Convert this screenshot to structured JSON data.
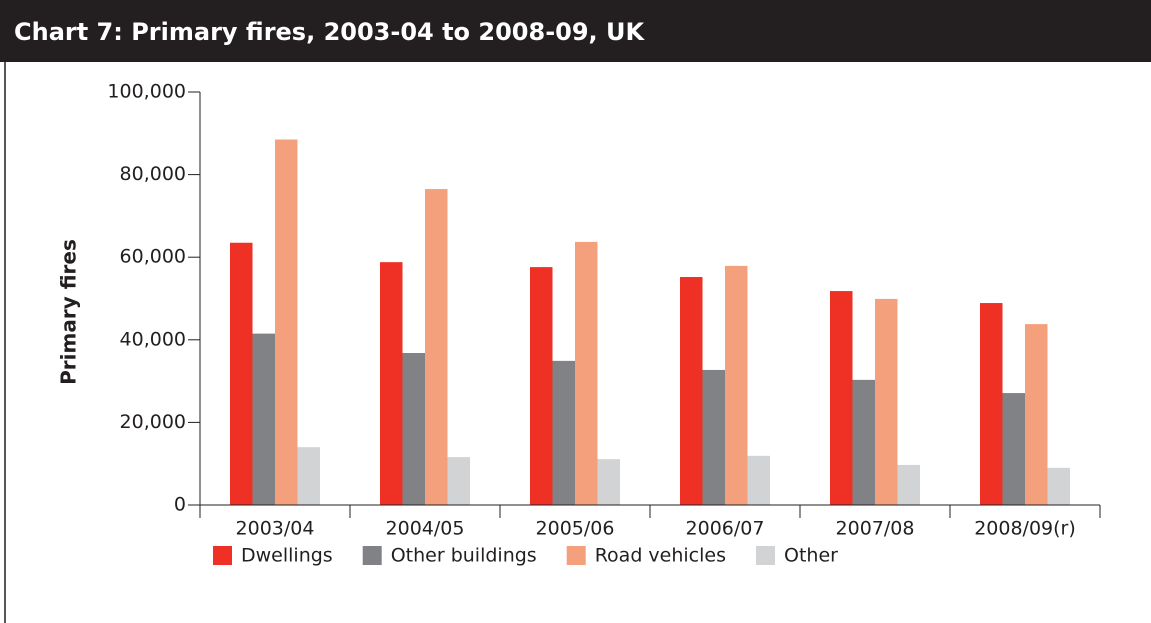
{
  "chart_data": {
    "type": "bar",
    "title": "Chart 7:   Primary fires, 2003-04 to 2008-09, UK",
    "y_label": "Primary fires",
    "categories": [
      "2003/04",
      "2004/05",
      "2005/06",
      "2006/07",
      "2007/08",
      "2008/09(r)"
    ],
    "series": [
      {
        "name": "Dwellings",
        "color": "#ee3124",
        "values": [
          63500,
          58800,
          57600,
          55200,
          51800,
          48900
        ]
      },
      {
        "name": "Other buildings",
        "color": "#808285",
        "values": [
          41500,
          36800,
          34900,
          32700,
          30300,
          27100
        ]
      },
      {
        "name": "Road vehicles",
        "color": "#f4a07c",
        "values": [
          88500,
          76500,
          63700,
          57900,
          49900,
          43800
        ]
      },
      {
        "name": "Other",
        "color": "#d1d3d4",
        "values": [
          14000,
          11600,
          11100,
          11900,
          9700,
          9000
        ]
      }
    ],
    "ylim": [
      0,
      100000
    ],
    "yticks": [
      {
        "value": 0,
        "label": "0"
      },
      {
        "value": 20000,
        "label": "20,000"
      },
      {
        "value": 40000,
        "label": "40,000"
      },
      {
        "value": 60000,
        "label": "60,000"
      },
      {
        "value": 80000,
        "label": "80,000"
      },
      {
        "value": 100000,
        "label": "100,000"
      }
    ],
    "legend": "bottom"
  }
}
